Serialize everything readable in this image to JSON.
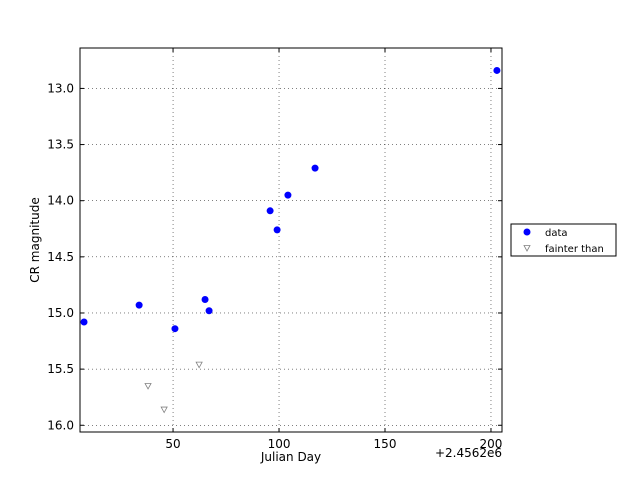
{
  "chart_data": {
    "type": "scatter",
    "xlabel": "Julian Day",
    "ylabel": "CR magnitude",
    "x_offset_label": "+2.4562e6",
    "xlim": [
      6.1,
      205.2
    ],
    "ylim": [
      16.06,
      12.64
    ],
    "xticks": [
      50,
      100,
      150,
      200
    ],
    "yticks": [
      {
        "value": 13,
        "label": "13.0"
      },
      13.5,
      {
        "value": 14,
        "label": "14.0"
      },
      14.5,
      {
        "value": 15,
        "label": "15.0"
      },
      15.5,
      {
        "value": 16,
        "label": "16.0"
      }
    ],
    "grid": true,
    "legend": "right",
    "series": [
      {
        "name": "data",
        "color": "#0000ff",
        "marker": "circle",
        "x": [
          8.0,
          34.0,
          50.9,
          65.1,
          67.0,
          95.8,
          99.1,
          104.2,
          117.0,
          202.8
        ],
        "values": [
          15.08,
          14.93,
          15.14,
          14.88,
          14.98,
          14.09,
          14.26,
          13.95,
          13.71,
          12.84
        ]
      },
      {
        "name": "fainter than",
        "color": "#808080",
        "marker": "triangle-down",
        "x": [
          38.2,
          45.8,
          62.3
        ],
        "values": [
          15.65,
          15.86,
          15.46
        ]
      }
    ]
  }
}
